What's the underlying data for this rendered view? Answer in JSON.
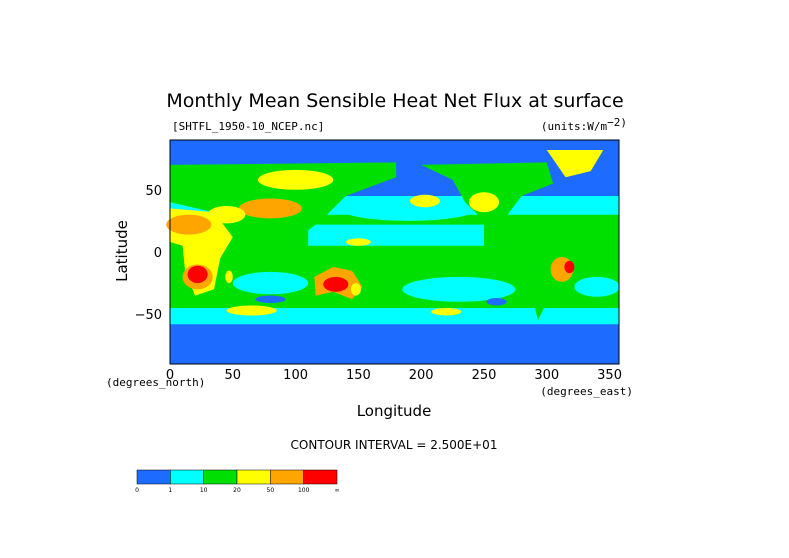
{
  "chart_data": {
    "type": "heatmap",
    "title": "Monthly Mean Sensible Heat Net Flux at surface",
    "file_label": "[SHTFL_1950-10_NCEP.nc]",
    "units_label": "(units:W/m^2)",
    "units_prefix": "(units:W/m",
    "units_exp": "−2)",
    "xlabel": "Longitude",
    "ylabel": "Latitude",
    "x_unit_label": "(degrees_east)",
    "y_unit_label": "(degrees_north)",
    "x_ticks": [
      "0",
      "50",
      "100",
      "150",
      "200",
      "250",
      "300",
      "350"
    ],
    "x_tick_values": [
      0,
      50,
      100,
      150,
      200,
      250,
      300,
      350
    ],
    "y_ticks": [
      "50",
      "0",
      "−50"
    ],
    "y_tick_values": [
      50,
      0,
      -50
    ],
    "xlim": [
      0,
      357.5
    ],
    "ylim": [
      -90,
      90
    ],
    "contour_interval": "CONTOUR INTERVAL = 2.500E+01",
    "colorbar": {
      "labels": [
        "0",
        "1",
        "10",
        "20",
        "50",
        "100",
        "∞"
      ],
      "colors": [
        "#1e6cff",
        "#00ffff",
        "#00e000",
        "#ffff00",
        "#ffa500",
        "#ff0000"
      ]
    }
  }
}
